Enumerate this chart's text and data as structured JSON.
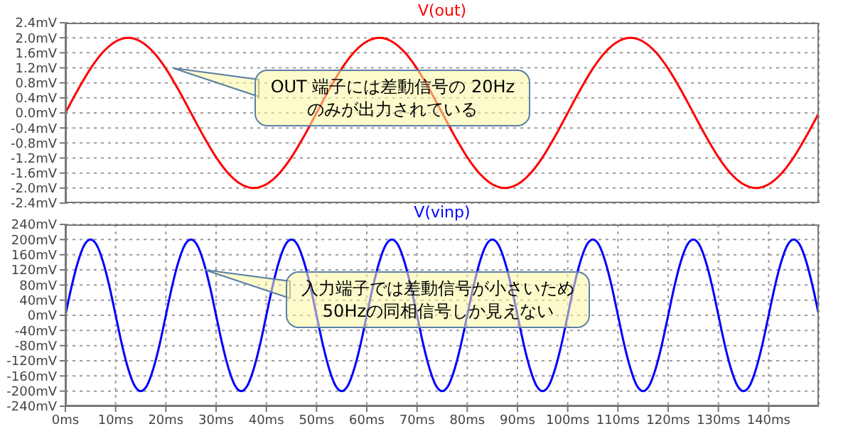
{
  "chart_data": [
    {
      "type": "line",
      "legend": "top",
      "grid": true,
      "tick_labels": "y",
      "xlim": [
        0,
        150
      ],
      "xticks": [
        {
          "value": 0,
          "label": null
        },
        {
          "value": 10,
          "label": null
        },
        {
          "value": 20,
          "label": null
        },
        {
          "value": 30,
          "label": null
        },
        {
          "value": 40,
          "label": null
        },
        {
          "value": 50,
          "label": null
        },
        {
          "value": 60,
          "label": null
        },
        {
          "value": 70,
          "label": null
        },
        {
          "value": 80,
          "label": null
        },
        {
          "value": 90,
          "label": null
        },
        {
          "value": 100,
          "label": null
        },
        {
          "value": 110,
          "label": null
        },
        {
          "value": 120,
          "label": null
        },
        {
          "value": 130,
          "label": null
        },
        {
          "value": 140,
          "label": null
        }
      ],
      "ylim": [
        -2.4,
        2.4
      ],
      "yticks": [
        {
          "value": -2.4,
          "label": "-2.4mV"
        },
        {
          "value": -2,
          "label": "-2.0mV"
        },
        {
          "value": -1.6,
          "label": "-1.6mV"
        },
        {
          "value": -1.2,
          "label": "-1.2mV"
        },
        {
          "value": -0.8,
          "label": "-0.8mV"
        },
        {
          "value": -0.4,
          "label": "-0.4mV"
        },
        {
          "value": 0,
          "label": "0.0mV"
        },
        {
          "value": 0.4,
          "label": "0.4mV"
        },
        {
          "value": 0.8,
          "label": "0.8mV"
        },
        {
          "value": 1.2,
          "label": "1.2mV"
        },
        {
          "value": 1.6,
          "label": "1.6mV"
        },
        {
          "value": 2,
          "label": "2.0mV"
        },
        {
          "value": 2.4,
          "label": "2.4mV"
        }
      ],
      "x": [
        0,
        2.5,
        5,
        7.5,
        10,
        12.5,
        15,
        17.5,
        20,
        22.5,
        25,
        27.5,
        30,
        32.5,
        35,
        37.5,
        40,
        42.5,
        45,
        47.5,
        50,
        52.5,
        55,
        57.5,
        60,
        62.5,
        65,
        67.5,
        70,
        72.5,
        75,
        77.5,
        80,
        82.5,
        85,
        87.5,
        90,
        92.5,
        95,
        97.5,
        100,
        102.5,
        105,
        107.5,
        110,
        112.5,
        115,
        117.5,
        120,
        122.5,
        125,
        127.5,
        130,
        132.5,
        135,
        137.5,
        140,
        142.5,
        145,
        147.5,
        150
      ],
      "series": [
        {
          "name": "V(out)",
          "color": "#ff0000",
          "values": [
            0,
            0.62,
            1.18,
            1.62,
            1.9,
            2,
            1.9,
            1.62,
            1.18,
            0.62,
            0,
            -0.62,
            -1.18,
            -1.62,
            -1.9,
            -2,
            -1.9,
            -1.62,
            -1.18,
            -0.62,
            0,
            0.62,
            1.18,
            1.62,
            1.9,
            2,
            1.9,
            1.62,
            1.18,
            0.62,
            0,
            -0.62,
            -1.18,
            -1.62,
            -1.9,
            -2,
            -1.9,
            -1.62,
            -1.18,
            -0.62,
            0,
            0.62,
            1.18,
            1.62,
            1.9,
            2,
            1.9,
            1.62,
            1.18,
            0.62,
            0,
            -0.62,
            -1.18,
            -1.62,
            -1.9,
            -2,
            -1.9,
            -1.62,
            -1.18,
            -0.62,
            0
          ]
        }
      ],
      "annotations": [
        {
          "text": "OUT 端子には差動信号の 20Hz\nのみが出力されている",
          "x": 21.6,
          "y": 1.2
        }
      ]
    },
    {
      "type": "line",
      "legend": "top",
      "grid": true,
      "xlim": [
        0,
        150
      ],
      "xticks": [
        {
          "value": 0,
          "label": "0ms"
        },
        {
          "value": 10,
          "label": "10ms"
        },
        {
          "value": 20,
          "label": "20ms"
        },
        {
          "value": 30,
          "label": "30ms"
        },
        {
          "value": 40,
          "label": "40ms"
        },
        {
          "value": 50,
          "label": "50ms"
        },
        {
          "value": 60,
          "label": "60ms"
        },
        {
          "value": 70,
          "label": "70ms"
        },
        {
          "value": 80,
          "label": "80ms"
        },
        {
          "value": 90,
          "label": "90ms"
        },
        {
          "value": 100,
          "label": "100ms"
        },
        {
          "value": 110,
          "label": "110ms"
        },
        {
          "value": 120,
          "label": "120ms"
        },
        {
          "value": 130,
          "label": "130ms"
        },
        {
          "value": 140,
          "label": "140ms"
        }
      ],
      "ylim": [
        -240,
        240
      ],
      "yticks": [
        {
          "value": -240,
          "label": "-240mV"
        },
        {
          "value": -200,
          "label": "-200mV"
        },
        {
          "value": -160,
          "label": "-160mV"
        },
        {
          "value": -120,
          "label": "-120mV"
        },
        {
          "value": -80,
          "label": "-80mV"
        },
        {
          "value": -40,
          "label": "-40mV"
        },
        {
          "value": 0,
          "label": "0mV"
        },
        {
          "value": 40,
          "label": "40mV"
        },
        {
          "value": 80,
          "label": "80mV"
        },
        {
          "value": 120,
          "label": "120mV"
        },
        {
          "value": 160,
          "label": "160mV"
        },
        {
          "value": 200,
          "label": "200mV"
        },
        {
          "value": 240,
          "label": "240mV"
        }
      ],
      "x": [
        0,
        1.25,
        2.5,
        3.75,
        5,
        6.25,
        7.5,
        8.75,
        10,
        11.25,
        12.5,
        13.75,
        15,
        16.25,
        17.5,
        18.75,
        20,
        21.25,
        22.5,
        23.75,
        25,
        26.25,
        27.5,
        28.75,
        30,
        31.25,
        32.5,
        33.75,
        35,
        36.25,
        37.5,
        38.75,
        40,
        41.25,
        42.5,
        43.75,
        45,
        46.25,
        47.5,
        48.75,
        50,
        51.25,
        52.5,
        53.75,
        55,
        56.25,
        57.5,
        58.75,
        60,
        61.25,
        62.5,
        63.75,
        65,
        66.25,
        67.5,
        68.75,
        70,
        71.25,
        72.5,
        73.75,
        75,
        76.25,
        77.5,
        78.75,
        80,
        81.25,
        82.5,
        83.75,
        85,
        86.25,
        87.5,
        88.75,
        90,
        91.25,
        92.5,
        93.75,
        95,
        96.25,
        97.5,
        98.75,
        100,
        101.25,
        102.5,
        103.75,
        105,
        106.25,
        107.5,
        108.75,
        110,
        111.25,
        112.5,
        113.75,
        115,
        116.25,
        117.5,
        118.75,
        120,
        121.25,
        122.5,
        123.75,
        125,
        126.25,
        127.5,
        128.75,
        130,
        131.25,
        132.5,
        133.75,
        135,
        136.25,
        137.5,
        138.75,
        140,
        141.25,
        142.5,
        143.75,
        145,
        146.25,
        147.5,
        148.75,
        150
      ],
      "series": [
        {
          "name": "V(vinp)",
          "color": "#0000ff",
          "values": [
            0,
            77,
            141,
            185,
            200,
            185,
            141,
            77,
            0,
            -77,
            -141,
            -185,
            -200,
            -185,
            -141,
            -77,
            0,
            77,
            141,
            185,
            200,
            185,
            141,
            77,
            0,
            -77,
            -141,
            -185,
            -200,
            -185,
            -141,
            -77,
            0,
            77,
            141,
            185,
            200,
            185,
            141,
            77,
            0,
            -77,
            -141,
            -185,
            -200,
            -185,
            -141,
            -77,
            0,
            77,
            141,
            185,
            200,
            185,
            141,
            77,
            0,
            -77,
            -141,
            -185,
            -200,
            -185,
            -141,
            -77,
            0,
            77,
            141,
            185,
            200,
            185,
            141,
            77,
            0,
            -77,
            -141,
            -185,
            -200,
            -185,
            -141,
            -77,
            0,
            77,
            141,
            185,
            200,
            185,
            141,
            77,
            0,
            -77,
            -141,
            -185,
            -200,
            -185,
            -141,
            -77,
            0,
            77,
            141,
            185,
            200,
            185,
            141,
            77,
            0,
            -77,
            -141,
            -185,
            -200,
            -185,
            -141,
            -77,
            0,
            77,
            141,
            185,
            200,
            185,
            141,
            77,
            0
          ]
        }
      ],
      "annotations": [
        {
          "text": "入力端子では差動信号が小さいため\n50Hzの同相信号しか見えない",
          "x": 27.8,
          "y": 120
        }
      ]
    }
  ]
}
